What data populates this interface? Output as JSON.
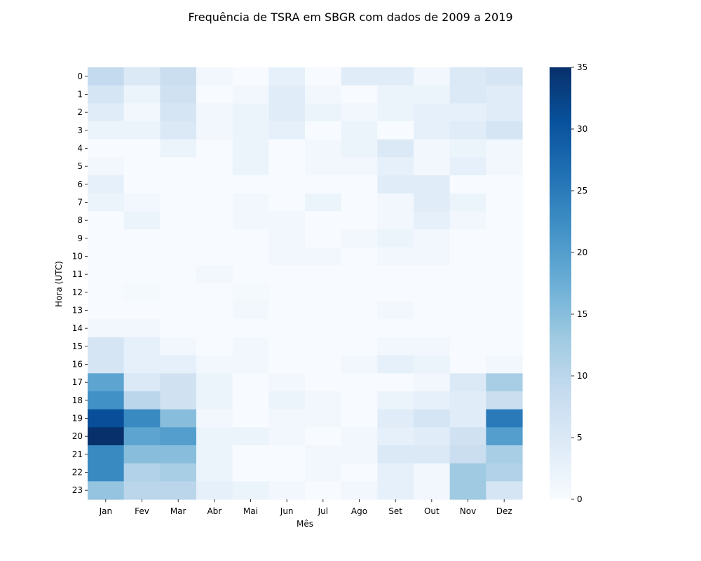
{
  "chart_data": {
    "type": "heatmap",
    "title": "Frequência de TSRA em SBGR com dados de 2009 a 2019",
    "xlabel": "Mês",
    "ylabel": "Hora (UTC)",
    "x_categories": [
      "Jan",
      "Fev",
      "Mar",
      "Abr",
      "Mai",
      "Jun",
      "Jul",
      "Ago",
      "Set",
      "Out",
      "Nov",
      "Dez"
    ],
    "y_categories": [
      "0",
      "1",
      "2",
      "3",
      "4",
      "5",
      "6",
      "7",
      "8",
      "9",
      "10",
      "11",
      "12",
      "13",
      "14",
      "15",
      "16",
      "17",
      "18",
      "19",
      "20",
      "21",
      "22",
      "23"
    ],
    "values": [
      [
        9,
        5,
        8,
        1,
        0,
        3,
        0,
        4,
        4,
        1,
        5,
        6
      ],
      [
        6,
        2,
        7,
        0,
        1,
        4,
        1,
        0,
        2,
        2,
        5,
        4
      ],
      [
        4,
        1,
        6,
        1,
        2,
        4,
        2,
        1,
        2,
        3,
        3,
        4
      ],
      [
        2,
        2,
        5,
        1,
        2,
        3,
        0,
        2,
        0,
        3,
        4,
        6
      ],
      [
        0,
        0,
        2,
        0,
        2,
        0,
        1,
        2,
        5,
        1,
        2,
        1
      ],
      [
        1,
        0,
        0,
        0,
        2,
        0,
        1,
        1,
        3,
        1,
        3,
        1
      ],
      [
        3,
        0,
        0,
        0,
        0,
        0,
        0,
        0,
        4,
        4,
        0,
        0
      ],
      [
        2,
        1,
        0,
        0,
        1,
        0,
        2,
        0,
        1,
        4,
        2,
        0
      ],
      [
        0,
        2,
        0,
        0,
        1,
        1,
        0,
        0,
        1,
        3,
        1,
        0
      ],
      [
        0,
        0,
        0,
        0,
        0,
        1,
        0,
        1,
        2,
        1,
        0,
        0
      ],
      [
        0,
        0,
        0,
        0,
        0,
        1,
        1,
        0,
        1,
        1,
        0,
        0
      ],
      [
        0,
        0,
        0,
        1,
        0,
        0,
        0,
        0,
        0,
        0,
        0,
        0
      ],
      [
        0,
        0.5,
        0,
        0,
        0.5,
        0,
        0,
        0,
        0,
        0,
        0,
        0
      ],
      [
        0,
        0,
        0,
        0,
        1,
        0,
        0,
        0,
        1,
        0,
        0,
        0
      ],
      [
        1,
        1,
        0,
        0,
        0,
        0,
        0,
        0,
        0,
        0,
        0,
        0
      ],
      [
        6,
        3,
        1,
        0,
        1,
        0,
        0,
        0,
        1,
        1,
        0,
        0
      ],
      [
        6,
        3,
        3,
        1,
        1,
        0,
        0,
        1,
        3,
        2,
        0,
        1
      ],
      [
        19,
        5,
        7,
        2,
        0,
        1,
        0,
        0,
        0,
        1,
        5,
        12
      ],
      [
        22,
        10,
        7,
        2,
        0,
        2,
        1,
        0,
        2,
        3,
        4,
        8
      ],
      [
        31,
        23,
        15,
        1,
        0,
        1,
        1,
        0,
        4,
        6,
        4,
        25
      ],
      [
        35,
        19,
        20,
        2,
        2,
        1,
        0,
        1,
        3,
        4,
        7,
        20
      ],
      [
        23,
        15,
        15,
        2,
        0,
        0,
        1,
        1,
        5,
        5,
        8,
        12
      ],
      [
        23,
        11,
        12,
        2,
        0,
        0,
        1,
        0,
        3,
        1,
        13,
        11
      ],
      [
        14,
        10,
        10,
        3,
        2,
        1,
        0,
        1,
        3,
        1,
        13,
        6
      ]
    ],
    "colorbar": {
      "min": 0,
      "max": 35,
      "ticks": [
        "0",
        "5",
        "10",
        "15",
        "20",
        "25",
        "30",
        "35"
      ]
    },
    "colormap": "Blues",
    "colors": {
      "low": "#f7fbff",
      "high": "#08306b"
    }
  }
}
